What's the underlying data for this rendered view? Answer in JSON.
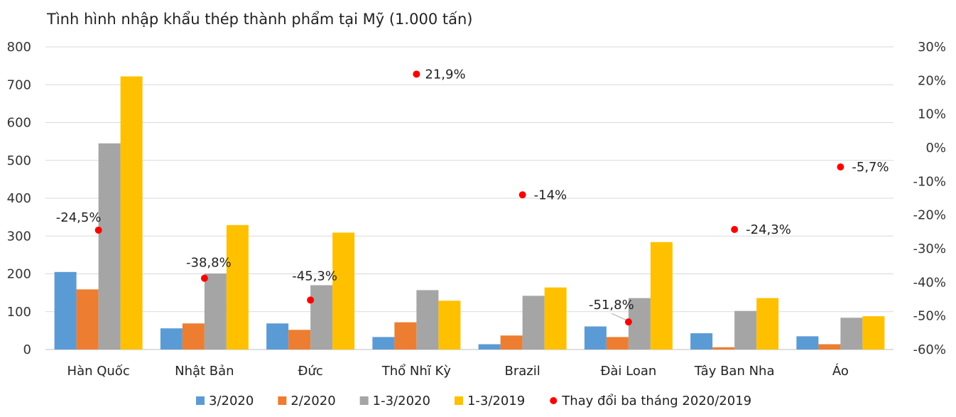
{
  "chart_data": {
    "type": "bar",
    "title": "Tình hình nhập khẩu thép thành phẩm tại Mỹ (1.000 tấn)",
    "categories": [
      "Hàn Quốc",
      "Nhật Bản",
      "Đức",
      "Thổ Nhĩ Kỳ",
      "Brazil",
      "Đài Loan",
      "Tây Ban Nha",
      "Áo"
    ],
    "series": [
      {
        "name": "3/2020",
        "color": "#5b9bd5",
        "values": [
          205,
          56,
          69,
          33,
          14,
          61,
          43,
          35
        ]
      },
      {
        "name": "2/2020",
        "color": "#ed7d31",
        "values": [
          159,
          69,
          52,
          72,
          37,
          33,
          6,
          14
        ]
      },
      {
        "name": "1-3/2020",
        "color": "#a5a5a5",
        "values": [
          545,
          201,
          170,
          157,
          142,
          136,
          102,
          84
        ]
      },
      {
        "name": "1-3/2019",
        "color": "#ffc000",
        "values": [
          722,
          329,
          309,
          129,
          164,
          284,
          136,
          88
        ]
      }
    ],
    "line_series": {
      "name": "Thay đổi ba tháng 2020/2019",
      "color": "#ff0000",
      "values": [
        -24.5,
        -38.8,
        -45.3,
        21.9,
        -14,
        -51.8,
        -24.3,
        -5.7
      ],
      "labels": [
        "-24,5%",
        "-38,8%",
        "-45,3%",
        "21,9%",
        "-14%",
        "-51,8%",
        "-24,3%",
        "-5,7%"
      ]
    },
    "y_left": {
      "min": 0,
      "max": 800,
      "ticks": [
        "0",
        "100",
        "200",
        "300",
        "400",
        "500",
        "600",
        "700",
        "800"
      ]
    },
    "y_right": {
      "min": -60,
      "max": 30,
      "ticks": [
        "-60%",
        "-50%",
        "-40%",
        "-30%",
        "-20%",
        "-10%",
        "0%",
        "10%",
        "20%",
        "30%"
      ]
    },
    "grid": true,
    "legend_position": "bottom"
  }
}
